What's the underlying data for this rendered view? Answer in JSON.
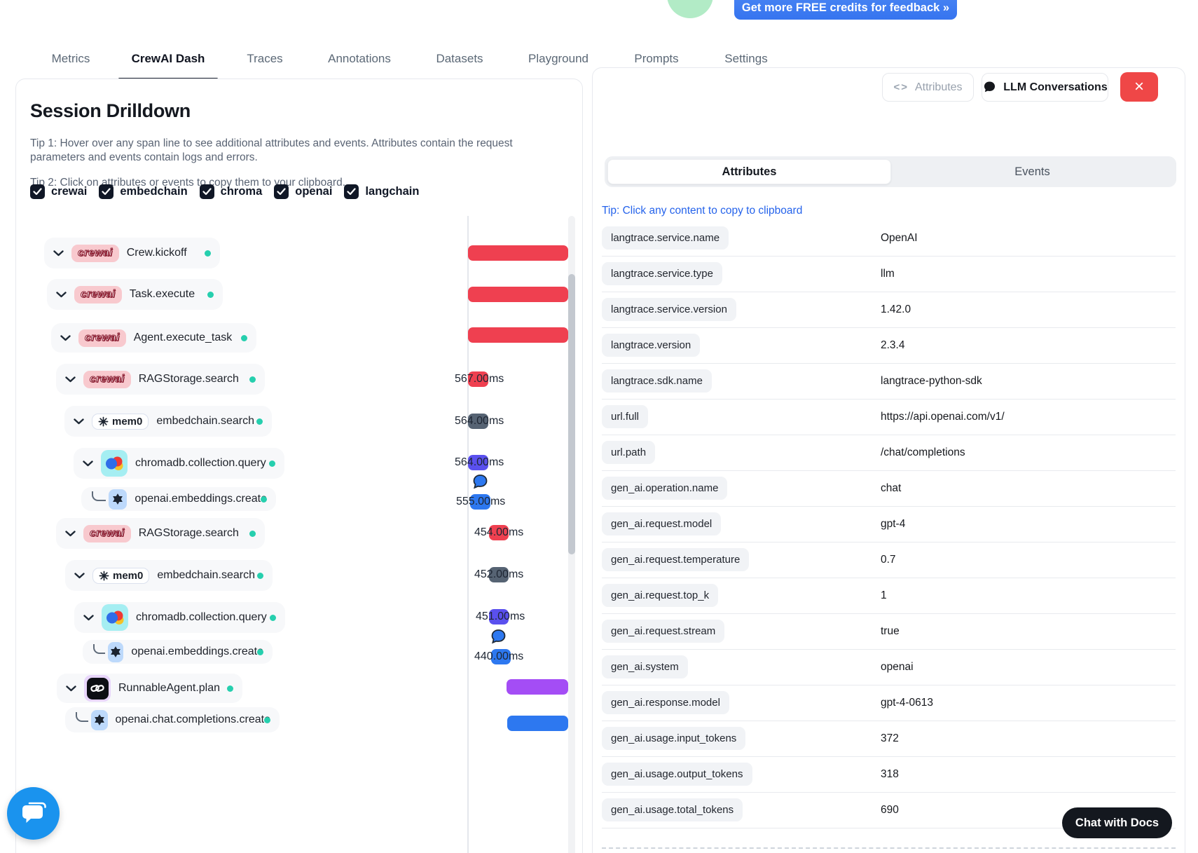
{
  "top": {
    "credits_button": "Get more FREE credits for feedback »",
    "nav_tabs": [
      {
        "label": "Metrics",
        "active": false
      },
      {
        "label": "CrewAI Dash",
        "active": true
      },
      {
        "label": "Traces",
        "active": false
      },
      {
        "label": "Annotations",
        "active": false
      },
      {
        "label": "Datasets",
        "active": false
      },
      {
        "label": "Playground",
        "active": false
      },
      {
        "label": "Prompts",
        "active": false
      },
      {
        "label": "Settings",
        "active": false
      }
    ]
  },
  "left_panel": {
    "title": "Session Drilldown",
    "tip1": "Tip 1: Hover over any span line to see additional attributes and events. Attributes contain the request parameters and events contain logs and errors.",
    "tip2": "Tip 2: Click on attributes or events to copy them to your clipboard.",
    "filters": [
      {
        "label": "crewai",
        "checked": true
      },
      {
        "label": "embedchain",
        "checked": true
      },
      {
        "label": "chroma",
        "checked": true
      },
      {
        "label": "openai",
        "checked": true
      },
      {
        "label": "langchain",
        "checked": true
      }
    ],
    "crewai_label": "crewai",
    "mem0_label": "mem0",
    "spans": [
      {
        "name": "Crew.kickoff",
        "icon": "crewai",
        "bar_color": "red"
      },
      {
        "name": "Task.execute",
        "icon": "crewai",
        "bar_color": "red"
      },
      {
        "name": "Agent.execute_task",
        "icon": "crewai",
        "bar_color": "red"
      },
      {
        "name": "RAGStorage.search",
        "icon": "crewai",
        "duration": "567.00ms",
        "bar_color": "red"
      },
      {
        "name": "embedchain.search",
        "icon": "mem0",
        "duration": "564.00ms",
        "bar_color": "slate"
      },
      {
        "name": "chromadb.collection.query",
        "icon": "chroma",
        "duration": "564.00ms",
        "bar_color": "indigo"
      },
      {
        "name": "openai.embeddings.create",
        "icon": "openai",
        "duration": "555.00ms",
        "bar_color": "blue",
        "bubble": true
      },
      {
        "name": "RAGStorage.search",
        "icon": "crewai",
        "duration": "454.00ms",
        "bar_color": "red"
      },
      {
        "name": "embedchain.search",
        "icon": "mem0",
        "duration": "452.00ms",
        "bar_color": "slate"
      },
      {
        "name": "chromadb.collection.query",
        "icon": "chroma",
        "duration": "451.00ms",
        "bar_color": "indigo"
      },
      {
        "name": "openai.embeddings.create",
        "icon": "openai",
        "duration": "440.00ms",
        "bar_color": "blue",
        "bubble": true
      },
      {
        "name": "RunnableAgent.plan",
        "icon": "langchain",
        "bar_color": "purple"
      },
      {
        "name": "openai.chat.completions.create",
        "icon": "openai",
        "bar_color": "blue"
      }
    ]
  },
  "right_panel": {
    "toolbar": {
      "attributes_button": "Attributes",
      "llm_button": "LLM Conversations"
    },
    "tabs": [
      {
        "label": "Attributes",
        "active": true
      },
      {
        "label": "Events",
        "active": false
      }
    ],
    "tip": "Tip: Click any content to copy to clipboard",
    "attributes": [
      {
        "key": "langtrace.service.name",
        "value": "OpenAI"
      },
      {
        "key": "langtrace.service.type",
        "value": "llm"
      },
      {
        "key": "langtrace.service.version",
        "value": "1.42.0"
      },
      {
        "key": "langtrace.version",
        "value": "2.3.4"
      },
      {
        "key": "langtrace.sdk.name",
        "value": "langtrace-python-sdk"
      },
      {
        "key": "url.full",
        "value": "https://api.openai.com/v1/"
      },
      {
        "key": "url.path",
        "value": "/chat/completions"
      },
      {
        "key": "gen_ai.operation.name",
        "value": "chat"
      },
      {
        "key": "gen_ai.request.model",
        "value": "gpt-4"
      },
      {
        "key": "gen_ai.request.temperature",
        "value": "0.7"
      },
      {
        "key": "gen_ai.request.top_k",
        "value": "1"
      },
      {
        "key": "gen_ai.request.stream",
        "value": "true"
      },
      {
        "key": "gen_ai.system",
        "value": "openai"
      },
      {
        "key": "gen_ai.response.model",
        "value": "gpt-4-0613"
      },
      {
        "key": "gen_ai.usage.input_tokens",
        "value": "372"
      },
      {
        "key": "gen_ai.usage.output_tokens",
        "value": "318"
      },
      {
        "key": "gen_ai.usage.total_tokens",
        "value": "690"
      }
    ]
  },
  "chat": {
    "docs_label": "Chat with Docs"
  },
  "colors": {
    "red": "#ef4050",
    "slate": "#566373",
    "indigo": "#5a50ee",
    "blue": "#2d78f0",
    "purple": "#a44df5",
    "teal": "#26cfae",
    "close_red": "#ef4747",
    "link_blue": "#2563eb",
    "accent_blue": "#3d7ef2"
  }
}
